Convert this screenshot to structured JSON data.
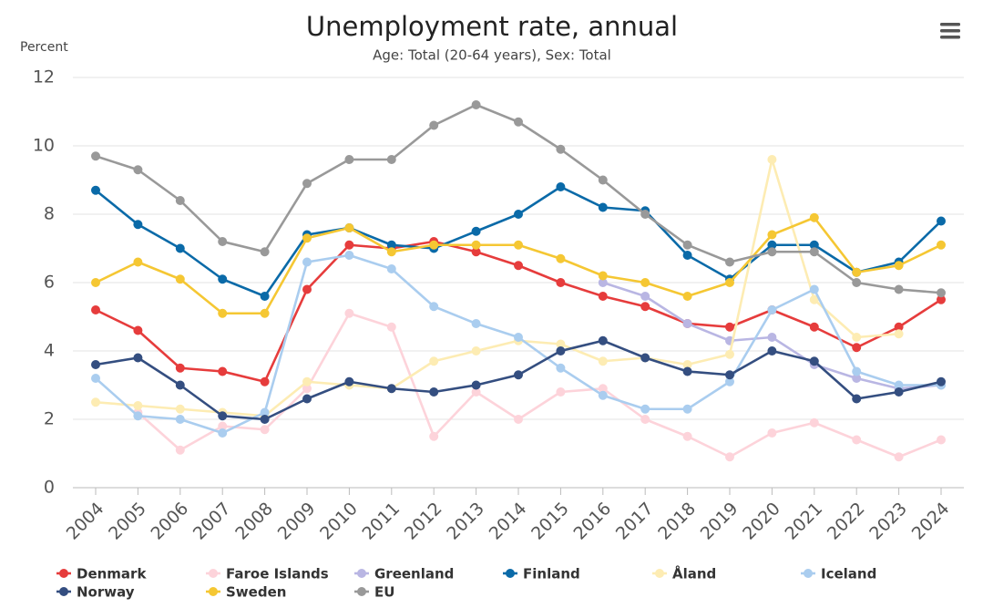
{
  "chart_data": {
    "type": "line",
    "title": "Unemployment rate, annual",
    "subtitle": "Age: Total (20-64 years), Sex: Total",
    "y_label": "Percent",
    "categories": [
      "2004",
      "2005",
      "2006",
      "2007",
      "2008",
      "2009",
      "2010",
      "2011",
      "2012",
      "2013",
      "2014",
      "2015",
      "2016",
      "2017",
      "2018",
      "2019",
      "2020",
      "2021",
      "2022",
      "2023",
      "2024"
    ],
    "ylim": [
      0,
      12
    ],
    "yticks": [
      0,
      2,
      4,
      6,
      8,
      10,
      12
    ],
    "grid": true,
    "series": [
      {
        "name": "Denmark",
        "color": "#e63c3c",
        "values": [
          5.2,
          4.6,
          3.5,
          3.4,
          3.1,
          5.8,
          7.1,
          7.0,
          7.2,
          6.9,
          6.5,
          6.0,
          5.6,
          5.3,
          4.8,
          4.7,
          5.2,
          4.7,
          4.1,
          4.7,
          5.5
        ]
      },
      {
        "name": "Faroe Islands",
        "color": "#fdd3da",
        "values": [
          null,
          2.2,
          1.1,
          1.8,
          1.7,
          2.9,
          5.1,
          4.7,
          1.5,
          2.8,
          2.0,
          2.8,
          2.9,
          2.0,
          1.5,
          0.9,
          1.6,
          1.9,
          1.4,
          0.9,
          1.4
        ]
      },
      {
        "name": "Greenland",
        "color": "#b9b6e3",
        "values": [
          null,
          null,
          null,
          null,
          null,
          null,
          null,
          null,
          null,
          null,
          null,
          null,
          6.0,
          5.6,
          4.8,
          4.3,
          4.4,
          3.6,
          3.2,
          2.9,
          3.0
        ]
      },
      {
        "name": "Finland",
        "color": "#0a6aa8",
        "values": [
          8.7,
          7.7,
          7.0,
          6.1,
          5.6,
          7.4,
          7.6,
          7.1,
          7.0,
          7.5,
          8.0,
          8.8,
          8.2,
          8.1,
          6.8,
          6.1,
          7.1,
          7.1,
          6.3,
          6.6,
          7.8
        ]
      },
      {
        "name": "Åland",
        "color": "#fdecb3",
        "values": [
          2.5,
          2.4,
          2.3,
          2.2,
          2.1,
          3.1,
          3.0,
          2.9,
          3.7,
          4.0,
          4.3,
          4.2,
          3.7,
          3.8,
          3.6,
          3.9,
          9.6,
          5.5,
          4.4,
          4.5,
          null
        ]
      },
      {
        "name": "Iceland",
        "color": "#aacdef",
        "values": [
          3.2,
          2.1,
          2.0,
          1.6,
          2.2,
          6.6,
          6.8,
          6.4,
          5.3,
          4.8,
          4.4,
          3.5,
          2.7,
          2.3,
          2.3,
          3.1,
          5.2,
          5.8,
          3.4,
          3.0,
          3.0
        ]
      },
      {
        "name": "Norway",
        "color": "#344e80",
        "values": [
          3.6,
          3.8,
          3.0,
          2.1,
          2.0,
          2.6,
          3.1,
          2.9,
          2.8,
          3.0,
          3.3,
          4.0,
          4.3,
          3.8,
          3.4,
          3.3,
          4.0,
          3.7,
          2.6,
          2.8,
          3.1
        ]
      },
      {
        "name": "Sweden",
        "color": "#f5c733",
        "values": [
          6.0,
          6.6,
          6.1,
          5.1,
          5.1,
          7.3,
          7.6,
          6.9,
          7.1,
          7.1,
          7.1,
          6.7,
          6.2,
          6.0,
          5.6,
          6.0,
          7.4,
          7.9,
          6.3,
          6.5,
          7.1
        ]
      },
      {
        "name": "EU",
        "color": "#999999",
        "values": [
          9.7,
          9.3,
          8.4,
          7.2,
          6.9,
          8.9,
          9.6,
          9.6,
          10.6,
          11.2,
          10.7,
          9.9,
          9.0,
          8.0,
          7.1,
          6.6,
          6.9,
          6.9,
          6.0,
          5.8,
          5.7
        ]
      }
    ]
  }
}
